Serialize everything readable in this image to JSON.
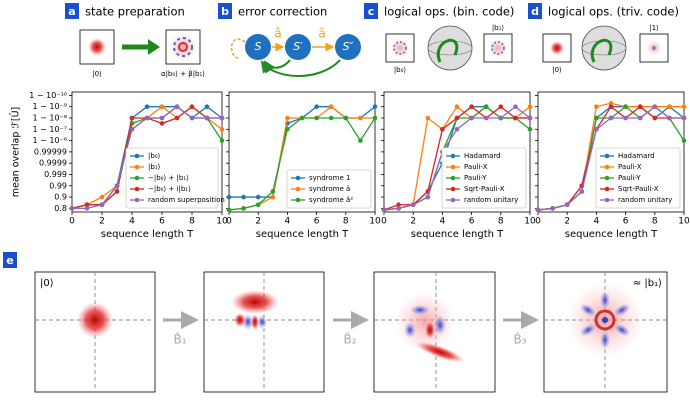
{
  "panel_labels": [
    "a",
    "b",
    "c",
    "d",
    "e"
  ],
  "panel_titles": [
    "state preparation",
    "error correction",
    "logical ops. (bin. code)",
    "logical ops. (triv. code)"
  ],
  "schematics": {
    "a": {
      "input": "|0⟩",
      "output": "α|b₀⟩ + β|b₁⟩"
    },
    "b": {
      "states": [
        "S",
        "S′",
        "S″"
      ],
      "operator": "â"
    },
    "c": {
      "input": "|b₀⟩",
      "output": "|b₁⟩"
    },
    "d": {
      "input": "|0⟩",
      "output": "|1⟩"
    }
  },
  "evolution": {
    "start_label": "|0⟩",
    "end_label": "≈ |b₁⟩",
    "operators": [
      "B̂₁",
      "B̂₂",
      "B̂₃"
    ]
  },
  "chart_data": [
    {
      "type": "line",
      "ylabel": "mean overlap ℱ[Û]",
      "xlabel": "sequence length T",
      "x": [
        0,
        1,
        2,
        3,
        4,
        5,
        6,
        7,
        8,
        9,
        10
      ],
      "xlim": [
        0,
        10
      ],
      "xticks": [
        0,
        2,
        4,
        6,
        8,
        10
      ],
      "yscale": "log",
      "ylim": [
        0.75,
        0.99999999995
      ],
      "yticks": [
        0.8,
        0.9,
        0.99,
        0.999,
        0.9999,
        0.99999,
        {
          "value": 0.999999,
          "label": "1 − 10⁻⁶"
        },
        {
          "value": 0.9999999,
          "label": "1 − 10⁻⁷"
        },
        {
          "value": 0.99999999,
          "label": "1 − 10⁻⁸"
        },
        {
          "value": 0.999999999,
          "label": "1 − 10⁻⁹"
        },
        {
          "value": 0.9999999999,
          "label": "1 − 10⁻¹⁰"
        }
      ],
      "legend": "lower right",
      "series": [
        {
          "name": "|b₀⟩",
          "color": "#1f77b4",
          "values": [
            0.8,
            0.84,
            0.84,
            0.99,
            0.99999999,
            0.999999999,
            0.999999999,
            0.999999999,
            0.99999999,
            0.999999999,
            0.99999999
          ]
        },
        {
          "name": "|b₁⟩",
          "color": "#ff7f0e",
          "values": [
            0.8,
            0.84,
            0.9,
            0.99,
            0.9999999,
            0.99999999,
            0.999999999,
            0.99999999,
            0.999999999,
            0.99999999,
            0.9999999
          ]
        },
        {
          "name": "−|b₀⟩ + |b₁⟩",
          "color": "#2ca02c",
          "values": [
            0.8,
            0.84,
            0.84,
            0.968,
            0.99999997,
            0.99999999,
            0.99999999,
            0.999999999,
            0.99999999,
            0.99999999,
            0.999999
          ]
        },
        {
          "name": "−|b₀⟩ + i|b₁⟩",
          "color": "#d62728",
          "values": [
            0.8,
            0.84,
            0.84,
            0.968,
            0.99999999,
            0.99999999,
            0.99999997,
            0.99999999,
            0.999999999,
            0.99999999,
            0.99999999
          ]
        },
        {
          "name": "random superposition",
          "color": "#9467bd",
          "values": [
            0.8,
            0.8,
            0.84,
            0.99,
            0.9999999,
            0.99999999,
            0.99999999,
            0.999999999,
            0.99999999,
            0.99999999,
            0.99999999
          ]
        }
      ]
    },
    {
      "type": "line",
      "xlabel": "sequence length T",
      "x": [
        0,
        1,
        2,
        3,
        4,
        5,
        6,
        7,
        8,
        9,
        10
      ],
      "xlim": [
        0,
        10
      ],
      "xticks": [
        0,
        2,
        4,
        6,
        8,
        10
      ],
      "yscale": "log",
      "ylim": [
        0.75,
        0.99999999995
      ],
      "yticks": [
        0.8,
        0.9,
        0.99,
        0.999,
        0.9999,
        0.99999,
        0.999999,
        0.9999999,
        0.99999999,
        0.999999999,
        0.9999999999
      ],
      "legend": "lower right",
      "series": [
        {
          "name": "syndrome 1",
          "color": "#1f77b4",
          "values": [
            0.9,
            0.9,
            0.9,
            0.9,
            0.99999997,
            0.99999999,
            0.999999999,
            0.999999999,
            0.99999999,
            0.99999999,
            0.999999999
          ]
        },
        {
          "name": "syndrome â",
          "color": "#ff7f0e",
          "values": [
            0.78,
            0.8,
            0.84,
            0.9,
            0.99999999,
            0.99999999,
            0.99999999,
            0.999999999,
            0.99999999,
            0.99999999,
            0.99999999
          ]
        },
        {
          "name": "syndrome â²",
          "color": "#2ca02c",
          "values": [
            0.78,
            0.8,
            0.84,
            0.968,
            0.9999999,
            0.99999999,
            0.99999999,
            0.99999999,
            0.99999999,
            0.999999,
            0.99999999
          ]
        }
      ]
    },
    {
      "type": "line",
      "xlabel": "sequence length T",
      "x": [
        0,
        1,
        2,
        3,
        4,
        5,
        6,
        7,
        8,
        9,
        10
      ],
      "xlim": [
        0,
        10
      ],
      "xticks": [
        0,
        2,
        4,
        6,
        8,
        10
      ],
      "yscale": "log",
      "ylim": [
        0.75,
        0.99999999995
      ],
      "yticks": [
        0.8,
        0.9,
        0.99,
        0.999,
        0.9999,
        0.99999,
        0.999999,
        0.9999999,
        0.99999999,
        0.999999999,
        0.9999999999
      ],
      "legend": "lower right",
      "series": [
        {
          "name": "Hadamard",
          "color": "#1f77b4",
          "values": [
            0.78,
            0.8,
            0.84,
            0.968,
            0.9999,
            0.99999999,
            0.999999999,
            0.999999999,
            0.99999999,
            0.99999999,
            0.99999999
          ]
        },
        {
          "name": "Pauli-X",
          "color": "#ff7f0e",
          "values": [
            0.78,
            0.8,
            0.84,
            0.99999999,
            0.9999999,
            0.999999999,
            0.99999999,
            0.999999999,
            0.99999999,
            0.99999999,
            0.999999999
          ]
        },
        {
          "name": "Pauli-Y",
          "color": "#2ca02c",
          "values": [
            0.78,
            0.8,
            0.84,
            0.9,
            0.99999,
            0.99999999,
            0.99999999,
            0.999999999,
            0.99999999,
            0.99999999,
            0.9999999
          ]
        },
        {
          "name": "Sqrt-Pauli-X",
          "color": "#d62728",
          "values": [
            0.78,
            0.84,
            0.84,
            0.968,
            0.9999999,
            0.99999999,
            0.999999999,
            0.99999999,
            0.999999999,
            0.99999999,
            0.99999999
          ]
        },
        {
          "name": "random unitary",
          "color": "#9467bd",
          "values": [
            0.78,
            0.8,
            0.84,
            0.9,
            0.99999,
            0.9999999,
            0.99999999,
            0.99999999,
            0.99999999,
            0.999999999,
            0.99999999
          ]
        }
      ]
    },
    {
      "type": "line",
      "xlabel": "sequence length T",
      "x": [
        0,
        1,
        2,
        3,
        4,
        5,
        6,
        7,
        8,
        9,
        10
      ],
      "xlim": [
        0,
        10
      ],
      "xticks": [
        0,
        2,
        4,
        6,
        8,
        10
      ],
      "yscale": "log",
      "ylim": [
        0.75,
        0.99999999995
      ],
      "yticks": [
        0.8,
        0.9,
        0.99,
        0.999,
        0.9999,
        0.99999,
        0.999999,
        0.9999999,
        0.99999999,
        0.999999999,
        0.9999999999
      ],
      "legend": "lower right",
      "series": [
        {
          "name": "Hadamard",
          "color": "#1f77b4",
          "values": [
            0.78,
            0.8,
            0.84,
            0.99,
            0.99999999,
            0.999999999,
            0.999999999,
            0.999999999,
            0.99999999,
            0.999999999,
            0.99999999
          ]
        },
        {
          "name": "Pauli-X",
          "color": "#ff7f0e",
          "values": [
            0.78,
            0.8,
            0.84,
            0.968,
            0.999999999,
            0.9999999995,
            0.999999999,
            0.999999999,
            0.999999999,
            0.999999999,
            0.999999999
          ]
        },
        {
          "name": "Pauli-Y",
          "color": "#2ca02c",
          "values": [
            0.78,
            0.8,
            0.84,
            0.968,
            0.99999999,
            0.99999999,
            0.999999999,
            0.99999999,
            0.999999999,
            0.99999999,
            0.999999
          ]
        },
        {
          "name": "Sqrt-Pauli-X",
          "color": "#d62728",
          "values": [
            0.78,
            0.8,
            0.84,
            0.99,
            0.9999999,
            0.999999999,
            0.99999999,
            0.999999999,
            0.99999999,
            0.99999999,
            0.99999999
          ]
        },
        {
          "name": "random unitary",
          "color": "#9467bd",
          "values": [
            0.78,
            0.8,
            0.84,
            0.968,
            0.9999999,
            0.99999999,
            0.99999999,
            0.99999999,
            0.999999999,
            0.99999999,
            0.99999999
          ]
        }
      ]
    }
  ]
}
